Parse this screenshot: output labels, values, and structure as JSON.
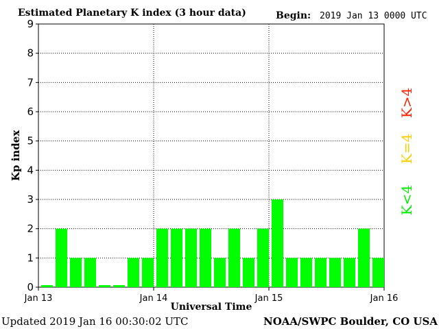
{
  "chart_data": {
    "type": "bar",
    "title": "Estimated Planetary K index (3 hour data)",
    "begin_label": "Begin:",
    "begin_value": "2019 Jan 13 0000 UTC",
    "xlabel": "Universal Time",
    "ylabel": "Kp index",
    "ylim": [
      0,
      9
    ],
    "y_ticks": [
      "0",
      "1",
      "2",
      "3",
      "4",
      "5",
      "6",
      "7",
      "8",
      "9"
    ],
    "x_tick_labels": [
      "Jan 13",
      "Jan 14",
      "Jan 15",
      "Jan 16"
    ],
    "values": [
      0,
      2,
      1,
      1,
      0,
      0,
      1,
      1,
      2,
      2,
      2,
      2,
      1,
      2,
      1,
      2,
      3,
      1,
      1,
      1,
      1,
      1,
      2,
      1
    ],
    "bar_color": "#00ff00",
    "grid": true,
    "updated": "Updated 2019 Jan 16 00:30:02 UTC",
    "source": "NOAA/SWPC Boulder, CO USA",
    "legend": [
      {
        "label": "K>4",
        "color": "#ff2200"
      },
      {
        "label": "K=4",
        "color": "#ffcc00"
      },
      {
        "label": "K<4",
        "color": "#00ee00"
      }
    ]
  }
}
